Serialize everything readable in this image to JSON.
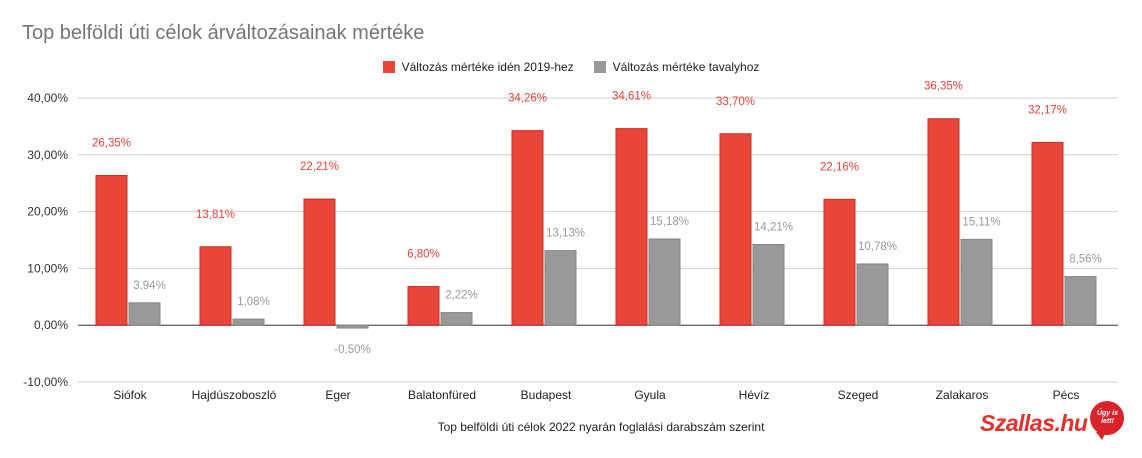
{
  "chart_data": {
    "type": "bar",
    "title": "Top belföldi úti célok árváltozásainak mértéke",
    "xlabel": "Top belföldi úti célok 2022 nyarán foglalási darabszám szerint",
    "ylabel": "",
    "ylim": [
      -10,
      40
    ],
    "yticks": [
      -10,
      0,
      10,
      20,
      30,
      40
    ],
    "ytick_labels": [
      "-10,00%",
      "0,00%",
      "10,00%",
      "20,00%",
      "30,00%",
      "40,00%"
    ],
    "grid": true,
    "legend_position": "top",
    "categories": [
      "Siófok",
      "Hajdúszoboszló",
      "Eger",
      "Balatonfüred",
      "Budapest",
      "Gyula",
      "Hévíz",
      "Szeged",
      "Zalakaros",
      "Pécs"
    ],
    "series": [
      {
        "name": "Változás mértéke idén 2019-hez",
        "color": "#e9443a",
        "values": [
          26.35,
          13.81,
          22.21,
          6.8,
          34.26,
          34.61,
          33.7,
          22.16,
          36.35,
          32.17
        ],
        "labels": [
          "26,35%",
          "13,81%",
          "22,21%",
          "6,80%",
          "34,26%",
          "34,61%",
          "33,70%",
          "22,16%",
          "36,35%",
          "32,17%"
        ]
      },
      {
        "name": "Változás mértéke tavalyhoz",
        "color": "#999999",
        "values": [
          3.94,
          1.08,
          -0.5,
          2.22,
          13.13,
          15.18,
          14.21,
          10.78,
          15.11,
          8.56
        ],
        "labels": [
          "3,94%",
          "1,08%",
          "-0,50%",
          "2,22%",
          "13,13%",
          "15,18%",
          "14,21%",
          "10,78%",
          "15,11%",
          "8,56%"
        ]
      }
    ]
  },
  "brand": {
    "name": "Szallas.hu",
    "badge": "Úgy is lett!",
    "color": "#e4312a"
  }
}
